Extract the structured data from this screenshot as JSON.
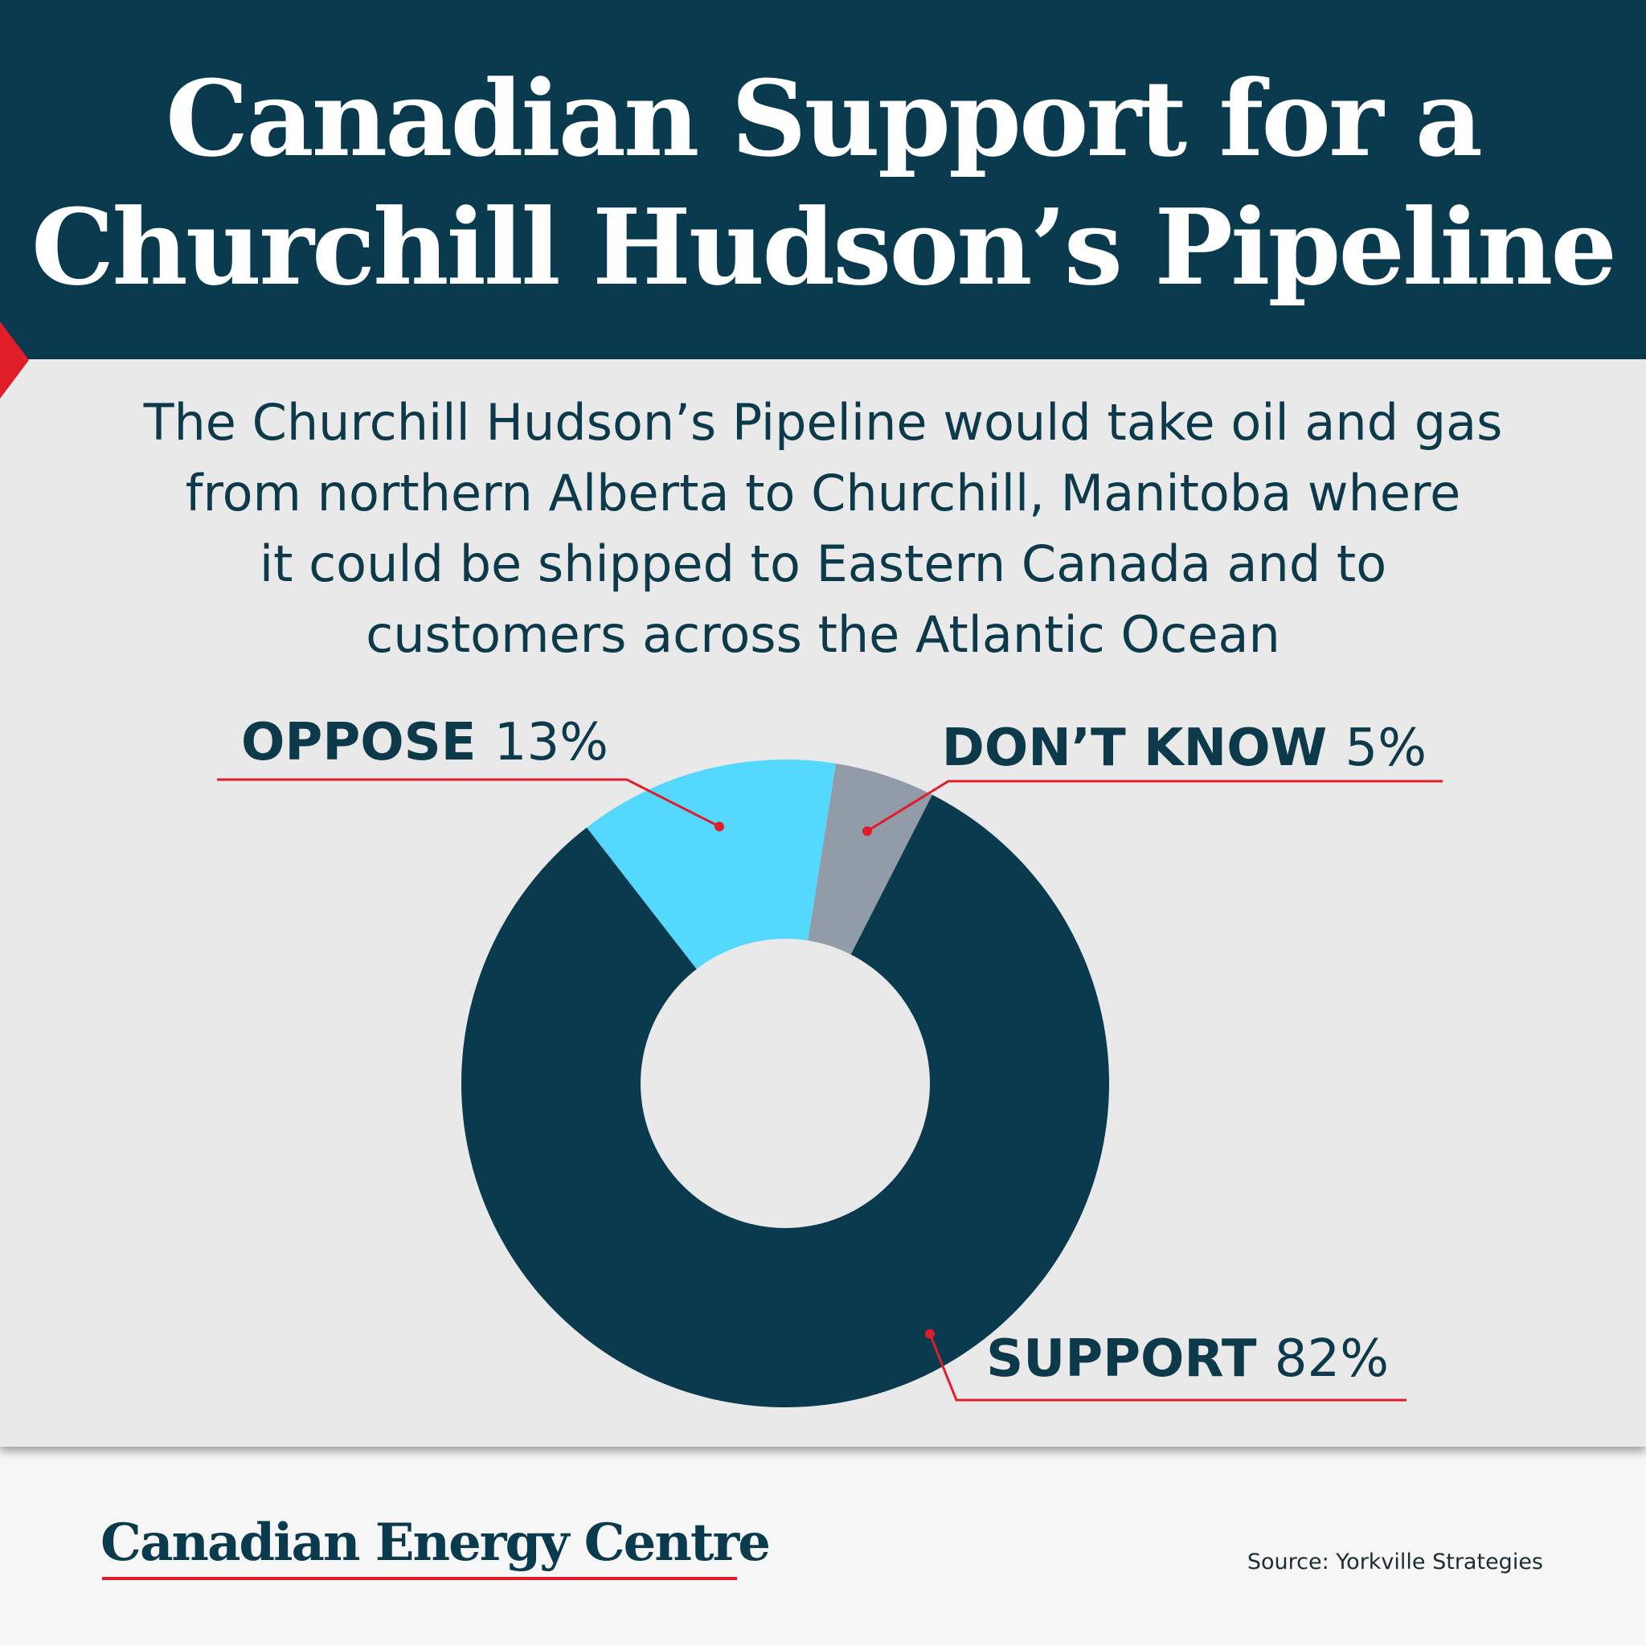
{
  "header": {
    "title_line1": "Canadian Support for a",
    "title_line2": "Churchill Hudson’s Pipeline"
  },
  "subtitle": {
    "line1": "The Churchill Hudson’s Pipeline would take oil and gas",
    "line2": "from northern Alberta to Churchill, Manitoba where",
    "line3": "it could be shipped to Eastern Canada and to",
    "line4": "customers across the Atlantic Ocean"
  },
  "chart_data": {
    "type": "pie",
    "donut": true,
    "slices": [
      {
        "label": "OPPOSE",
        "value": 13,
        "display": "13%",
        "color": "#55d8fd"
      },
      {
        "label": "DON’T KNOW",
        "value": 5,
        "display": "5%",
        "color": "#929ca8"
      },
      {
        "label": "SUPPORT",
        "value": 82,
        "display": "82%",
        "color": "#0a3a4e"
      }
    ],
    "leader_color": "#e01e2a"
  },
  "footer": {
    "brand": "Canadian Energy Centre",
    "source": "Source: Yorkville Strategies"
  },
  "colors": {
    "header_bg": "#0a3a4e",
    "panel_bg": "#e9e9e9",
    "accent": "#e01e2a",
    "text": "#0d3a4b"
  }
}
